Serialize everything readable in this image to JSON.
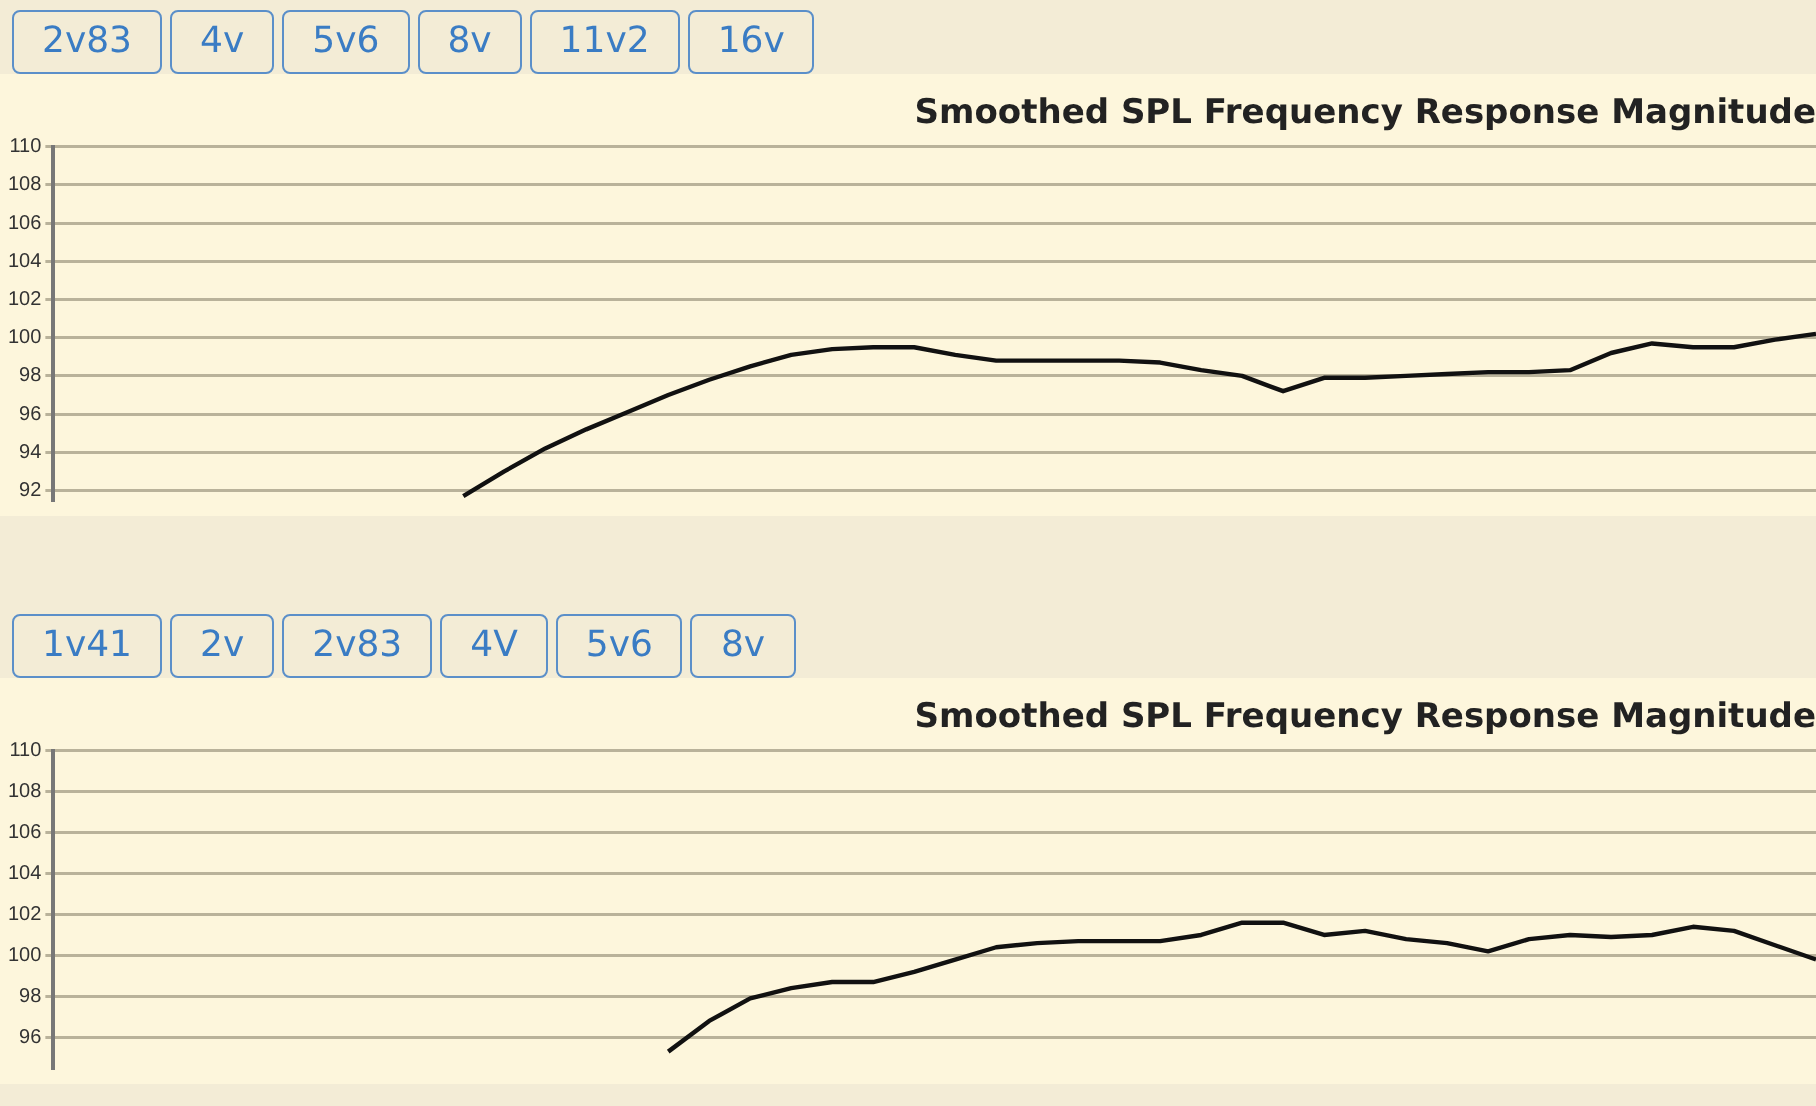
{
  "chart_data": [
    {
      "type": "line",
      "title": "Smoothed SPL Frequency Response Magnitude",
      "annotations": [
        "2v83",
        "4v",
        "5v6",
        "8v",
        "11v2",
        "16v"
      ],
      "categories": [
        null,
        null,
        null,
        null,
        null,
        null,
        null,
        null,
        null,
        null,
        null,
        null,
        null,
        null,
        null,
        null,
        null,
        null,
        null,
        null,
        null,
        null,
        null,
        null,
        null,
        null,
        null,
        null,
        null,
        null,
        null,
        null,
        null,
        null,
        null,
        null,
        null,
        null,
        null,
        null,
        null,
        null,
        null,
        null
      ],
      "series": [
        {
          "color": "#111111",
          "values": [
            null,
            null,
            null,
            null,
            null,
            null,
            null,
            null,
            null,
            null,
            91.7,
            93.0,
            94.2,
            95.2,
            96.1,
            97.0,
            97.8,
            98.5,
            99.1,
            99.4,
            99.5,
            99.5,
            99.1,
            98.8,
            98.8,
            98.8,
            98.8,
            98.7,
            98.3,
            98.0,
            97.2,
            97.9,
            97.9,
            98.0,
            98.1,
            98.2,
            98.2,
            98.3,
            99.2,
            99.7,
            99.5,
            99.5,
            99.9,
            100.2
          ]
        }
      ],
      "ylim": [
        91.5,
        110
      ],
      "yticks": [
        92,
        94,
        96,
        98,
        100,
        102,
        104,
        106,
        108,
        110
      ],
      "grid": "y",
      "tick_labels": "y",
      "legend": false
    },
    {
      "type": "line",
      "title": "Smoothed SPL Frequency Response Magnitude",
      "annotations": [
        "1v41",
        "2v",
        "2v83",
        "4V",
        "5v6",
        "8v"
      ],
      "categories": [
        null,
        null,
        null,
        null,
        null,
        null,
        null,
        null,
        null,
        null,
        null,
        null,
        null,
        null,
        null,
        null,
        null,
        null,
        null,
        null,
        null,
        null,
        null,
        null,
        null,
        null,
        null,
        null,
        null,
        null,
        null,
        null,
        null,
        null,
        null,
        null,
        null,
        null,
        null,
        null,
        null,
        null,
        null,
        null
      ],
      "series": [
        {
          "color": "#111111",
          "values": [
            null,
            null,
            null,
            null,
            null,
            null,
            null,
            null,
            null,
            null,
            null,
            null,
            null,
            null,
            null,
            95.3,
            96.8,
            97.9,
            98.4,
            98.7,
            98.7,
            99.2,
            99.8,
            100.4,
            100.6,
            100.7,
            100.7,
            100.7,
            101.0,
            101.6,
            101.6,
            101.0,
            101.2,
            100.8,
            100.6,
            100.2,
            100.8,
            101.0,
            100.9,
            101.0,
            101.4,
            101.2,
            100.5,
            99.8
          ]
        }
      ],
      "ylim": [
        94.5,
        110
      ],
      "yticks": [
        96,
        98,
        100,
        102,
        104,
        106,
        108,
        110
      ],
      "grid": "y",
      "tick_labels": "y",
      "legend": false
    }
  ]
}
